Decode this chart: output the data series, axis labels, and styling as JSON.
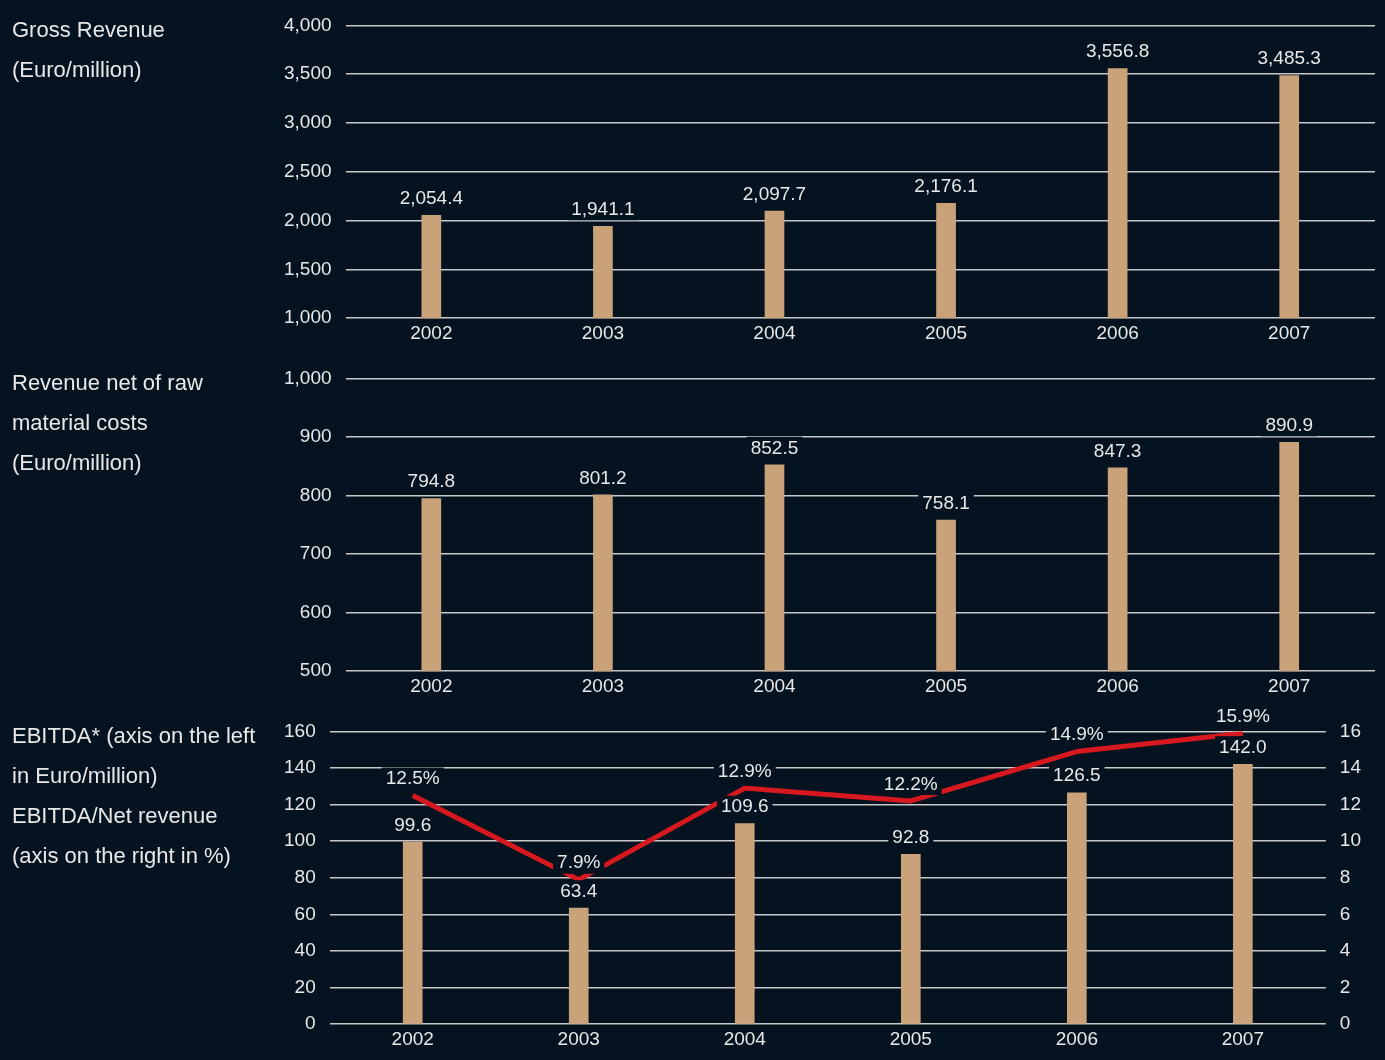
{
  "chart_data": [
    {
      "type": "bar",
      "title": "Gross Revenue (Euro/million)",
      "categories": [
        "2002",
        "2003",
        "2004",
        "2005",
        "2006",
        "2007"
      ],
      "values": [
        2054.4,
        1941.1,
        2097.7,
        2176.1,
        3556.8,
        3485.3
      ],
      "value_labels": [
        "2,054.4",
        "1,941.1",
        "2,097.7",
        "2,176.1",
        "3,556.8",
        "3,485.3"
      ],
      "color": "#c9a27a",
      "ylim": [
        1000,
        4000
      ],
      "yticks": [
        {
          "value": 1000,
          "label": "1,000"
        },
        {
          "value": 1500,
          "label": "1,500"
        },
        {
          "value": 2000,
          "label": "2,000"
        },
        {
          "value": 2500,
          "label": "2,500"
        },
        {
          "value": 3000,
          "label": "3,000"
        },
        {
          "value": 3500,
          "label": "3,500"
        },
        {
          "value": 4000,
          "label": "4,000"
        }
      ],
      "grid": "y"
    },
    {
      "type": "bar",
      "title": "Revenue net of raw material costs (Euro/million)",
      "categories": [
        "2002",
        "2003",
        "2004",
        "2005",
        "2006",
        "2007"
      ],
      "values": [
        794.8,
        801.2,
        852.5,
        758.1,
        847.3,
        890.9
      ],
      "value_labels": [
        "794.8",
        "801.2",
        "852.5",
        "758.1",
        "847.3",
        "890.9"
      ],
      "color": "#c9a27a",
      "ylim": [
        500,
        1000
      ],
      "yticks": [
        500,
        600,
        700,
        800,
        900,
        {
          "value": 1000,
          "label": "1,000"
        }
      ],
      "grid": "y"
    },
    {
      "type": "bar",
      "title": "EBITDA* (axis on the left in Euro/million)",
      "subtitle": "EBITDA/Net revenue (axis on the right in %)",
      "categories": [
        "2002",
        "2003",
        "2004",
        "2005",
        "2006",
        "2007"
      ],
      "series": [
        {
          "type": "bar",
          "color": "#c9a27a",
          "values": [
            99.6,
            63.4,
            109.6,
            92.8,
            126.5,
            142.0
          ],
          "value_labels": [
            "99.6",
            "63.4",
            "109.6",
            "92.8",
            "126.5",
            "142.0"
          ]
        },
        {
          "type": "line",
          "axis": "y2",
          "color": "#d7191f",
          "values": [
            12.5,
            7.9,
            12.9,
            12.2,
            14.9,
            15.9
          ],
          "value_labels": [
            "12.5%",
            "7.9%",
            "12.9%",
            "12.2%",
            "14.9%",
            "15.9%"
          ]
        }
      ],
      "marker": "none",
      "ylim": [
        0,
        160
      ],
      "yticks": [
        0,
        20,
        40,
        60,
        80,
        100,
        120,
        140,
        160
      ],
      "y2lim": [
        0,
        16
      ],
      "y2ticks": [
        0,
        2,
        4,
        6,
        8,
        10,
        12,
        14,
        16
      ],
      "grid": "y"
    }
  ]
}
